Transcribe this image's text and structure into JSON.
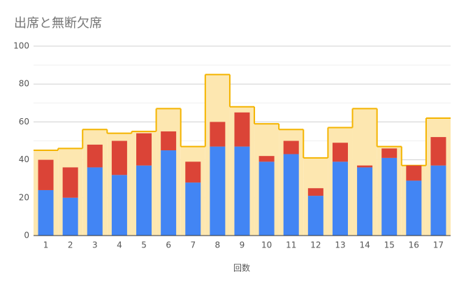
{
  "chart_data": {
    "type": "combo",
    "title": "出席と無断欠席",
    "x_label": "回数",
    "categories": [
      "1",
      "2",
      "3",
      "4",
      "5",
      "6",
      "7",
      "8",
      "9",
      "10",
      "11",
      "12",
      "13",
      "14",
      "15",
      "16",
      "17"
    ],
    "series": [
      {
        "kind": "step-area",
        "color": "#f4b400",
        "fill": "#fde7b0",
        "values": [
          45,
          46,
          56,
          54,
          55,
          67,
          47,
          85,
          68,
          59,
          56,
          41,
          57,
          67,
          47,
          37,
          62
        ]
      },
      {
        "kind": "stacked-bar",
        "color": "#4285f4",
        "values": [
          24,
          20,
          36,
          32,
          37,
          45,
          28,
          47,
          47,
          39,
          43,
          21,
          39,
          36,
          41,
          29,
          37
        ]
      },
      {
        "kind": "stacked-bar",
        "color": "#db4437",
        "values": [
          16,
          16,
          12,
          18,
          17,
          10,
          11,
          13,
          18,
          3,
          7,
          4,
          10,
          1,
          5,
          8,
          15
        ]
      }
    ],
    "ylim": [
      0,
      100
    ],
    "yticks": [
      0,
      20,
      40,
      60,
      80,
      100
    ],
    "minor_yticks": [
      10,
      30,
      50,
      70,
      90
    ],
    "grid": true
  }
}
